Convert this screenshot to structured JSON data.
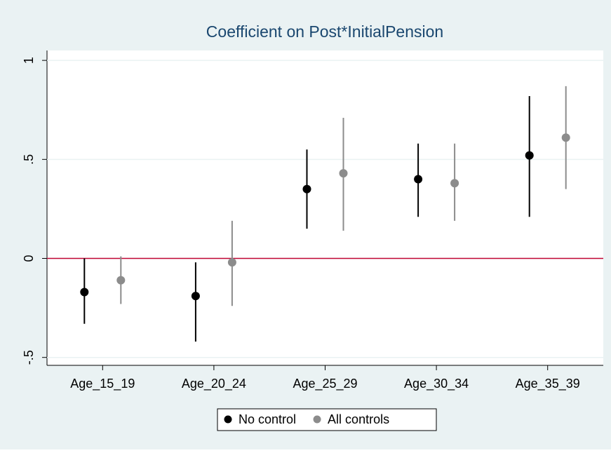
{
  "chart_data": {
    "type": "errorbar",
    "title": "Coefficient on Post*InitialPension",
    "categories": [
      "Age_15_19",
      "Age_20_24",
      "Age_25_29",
      "Age_30_34",
      "Age_35_39"
    ],
    "series": [
      {
        "name": "No control",
        "color": "#000000",
        "values": [
          -0.17,
          -0.19,
          0.35,
          0.4,
          0.52
        ],
        "low": [
          -0.33,
          -0.42,
          0.15,
          0.21,
          0.21
        ],
        "high": [
          0,
          -0.02,
          0.55,
          0.58,
          0.82
        ]
      },
      {
        "name": "All controls",
        "color": "#8c8c8c",
        "values": [
          -0.11,
          -0.02,
          0.43,
          0.38,
          0.61
        ],
        "low": [
          -0.23,
          -0.24,
          0.14,
          0.19,
          0.35
        ],
        "high": [
          0.01,
          0.19,
          0.71,
          0.58,
          0.87
        ]
      }
    ],
    "ylim": [
      -0.54,
      1.05
    ],
    "yticks": [
      {
        "value": -0.5,
        "label": "-.5"
      },
      0,
      {
        "value": 0.5,
        "label": ".5"
      },
      1
    ],
    "grid": true,
    "reference_line": {
      "value": 0,
      "color": "#c10534"
    },
    "legend": "bottom"
  }
}
